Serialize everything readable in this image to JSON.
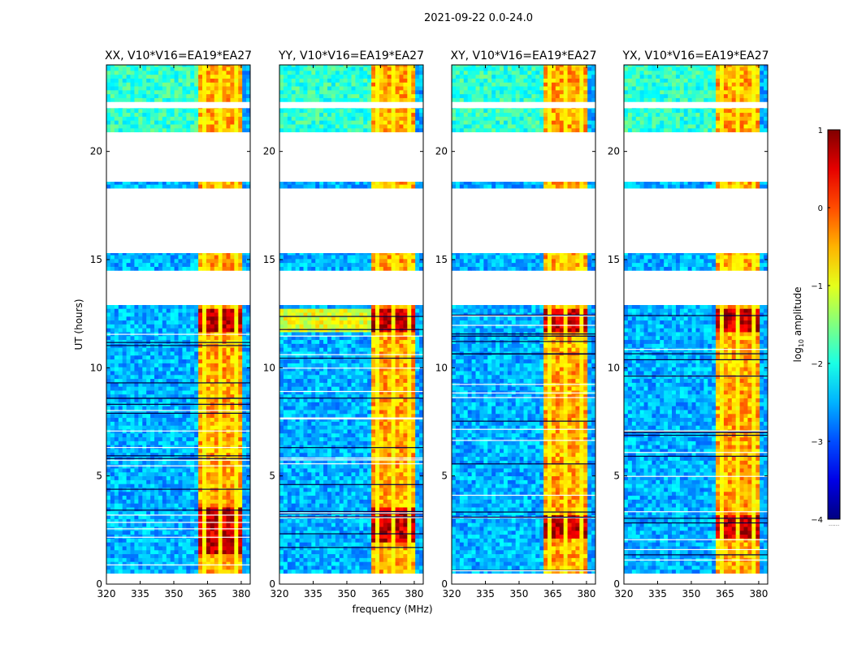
{
  "suptitle": "2021-09-22 0.0-24.0",
  "ylabel": "UT (hours)",
  "xlabel": "frequency (MHz)",
  "colorbar": {
    "label_prefix": "log",
    "label_sub": "10",
    "label_suffix": " amplitude",
    "range": [
      -4,
      1
    ],
    "ticks": [
      1,
      0,
      -1,
      -2,
      -3,
      -4
    ],
    "tick_labels": [
      "1",
      "0",
      "−1",
      "−2",
      "−3",
      "−4"
    ],
    "extra": "......"
  },
  "chart_data": {
    "type": "heatmap",
    "xlim": [
      320,
      384
    ],
    "ylim": [
      0,
      24
    ],
    "xticks": [
      320,
      335,
      350,
      365,
      380
    ],
    "yticks": [
      0,
      5,
      10,
      15,
      20
    ],
    "colormap": "jet",
    "panels": [
      {
        "title": "XX, V10*V16=EA19*EA27",
        "strong_band_mhz": [
          360.5,
          380
        ],
        "weak_band_mhz": [
          320,
          360.5
        ],
        "hot_intervals_ut": [
          [
            1.3,
            3.5
          ],
          [
            11.5,
            12.6
          ]
        ],
        "data_coverage_ut": [
          [
            0.5,
            12.9
          ],
          [
            14.5,
            15.3
          ],
          [
            18.3,
            18.6
          ],
          [
            20.9,
            22.0
          ],
          [
            22.3,
            24.0
          ]
        ]
      },
      {
        "title": "YY, V10*V16=EA19*EA27",
        "strong_band_mhz": [
          360.5,
          380
        ],
        "weak_band_mhz": [
          320,
          360.5
        ],
        "hot_intervals_ut": [
          [
            1.8,
            3.5
          ],
          [
            11.5,
            12.6
          ]
        ],
        "data_coverage_ut": [
          [
            0.5,
            12.9
          ],
          [
            14.5,
            15.3
          ],
          [
            18.3,
            18.6
          ],
          [
            20.9,
            22.0
          ],
          [
            22.3,
            24.0
          ]
        ]
      },
      {
        "title": "XY, V10*V16=EA19*EA27",
        "strong_band_mhz": [
          360.5,
          380
        ],
        "weak_band_mhz": [
          320,
          360.5
        ],
        "hot_intervals_ut": [
          [
            2.0,
            3.2
          ],
          [
            11.5,
            12.6
          ]
        ],
        "data_coverage_ut": [
          [
            0.5,
            12.9
          ],
          [
            14.5,
            15.3
          ],
          [
            18.3,
            18.6
          ],
          [
            20.9,
            22.0
          ],
          [
            22.3,
            24.0
          ]
        ]
      },
      {
        "title": "YX, V10*V16=EA19*EA27",
        "strong_band_mhz": [
          360.5,
          380
        ],
        "weak_band_mhz": [
          320,
          360.5
        ],
        "hot_intervals_ut": [
          [
            2.0,
            3.2
          ],
          [
            11.5,
            12.6
          ]
        ],
        "data_coverage_ut": [
          [
            0.5,
            12.9
          ],
          [
            14.5,
            15.3
          ],
          [
            18.3,
            18.6
          ],
          [
            20.9,
            22.0
          ],
          [
            22.3,
            24.0
          ]
        ]
      }
    ]
  }
}
